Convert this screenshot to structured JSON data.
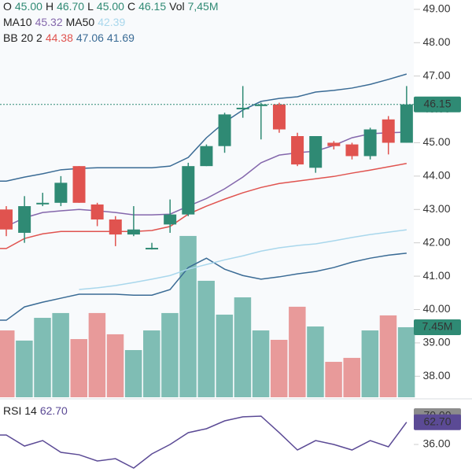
{
  "chart_data": {
    "type": "candlestick",
    "header": {
      "ohlc": [
        {
          "label": "O",
          "value": "45.00"
        },
        {
          "label": "H",
          "value": "46.70"
        },
        {
          "label": "L",
          "value": "45.00"
        },
        {
          "label": "C",
          "value": "46.15"
        },
        {
          "label": "Vol",
          "value": "7,45M"
        }
      ],
      "ma": [
        {
          "label": "MA10",
          "value": "45.32"
        },
        {
          "label": "MA50",
          "value": "42.39"
        }
      ],
      "bb": {
        "label": "BB 20 2",
        "values": [
          "44.38",
          "47.06",
          "41.69"
        ]
      },
      "rsi": {
        "label": "RSI 14",
        "value": "62.70"
      }
    },
    "open": [
      43.0,
      42.3,
      43.2,
      43.2,
      44.3,
      43.15,
      42.7,
      42.25,
      41.85,
      42.55,
      42.85,
      44.3,
      44.9,
      46.05,
      46.1,
      46.15,
      45.2,
      44.25,
      45.0,
      44.95,
      44.6,
      45.7,
      45.0
    ],
    "high": [
      43.1,
      43.4,
      43.5,
      44.0,
      44.3,
      43.2,
      42.8,
      43.1,
      42.0,
      43.3,
      44.4,
      44.95,
      45.9,
      46.7,
      46.2,
      46.2,
      45.3,
      45.2,
      45.05,
      45.0,
      45.45,
      45.8,
      46.7
    ],
    "low": [
      42.2,
      42.0,
      43.1,
      43.1,
      43.2,
      42.5,
      41.9,
      42.2,
      41.8,
      42.3,
      42.8,
      44.3,
      44.7,
      45.75,
      45.1,
      45.3,
      44.3,
      44.1,
      44.8,
      44.5,
      44.5,
      44.65,
      45.0
    ],
    "close": [
      42.4,
      43.1,
      43.2,
      43.8,
      43.2,
      42.7,
      42.25,
      42.4,
      41.85,
      42.85,
      44.3,
      44.9,
      45.85,
      46.05,
      46.15,
      45.4,
      44.35,
      45.2,
      44.9,
      44.6,
      45.4,
      45.0,
      46.15
    ],
    "up_color": "#2f8a74",
    "down_color": "#e0534f",
    "volume": [
      7.11,
      6.03,
      8.45,
      8.96,
      6.19,
      8.96,
      6.7,
      5.02,
      7.11,
      8.96,
      17.16,
      12.39,
      8.79,
      10.63,
      7.11,
      6.11,
      9.63,
      7.53,
      3.77,
      4.19,
      7.11,
      8.71,
      7.45
    ],
    "volume_up_color": "#7fbdb4",
    "volume_down_color": "#e89a9a",
    "volume_lim": [
      0,
      20
    ],
    "volume_label": "7.45M",
    "series": [
      {
        "name": "BB upper",
        "color": "#3a6b95",
        "values": [
          43.85,
          43.97,
          44.07,
          44.19,
          44.23,
          44.25,
          44.25,
          44.25,
          44.25,
          44.3,
          44.56,
          45.15,
          45.62,
          45.98,
          46.24,
          46.33,
          46.38,
          46.52,
          46.57,
          46.64,
          46.75,
          46.9,
          47.06
        ]
      },
      {
        "name": "BB lower",
        "color": "#3a6b95",
        "values": [
          39.68,
          40.08,
          40.22,
          40.34,
          40.46,
          40.46,
          40.46,
          40.43,
          40.43,
          40.6,
          41.26,
          41.54,
          41.21,
          41.02,
          40.91,
          40.98,
          41.07,
          41.14,
          41.26,
          41.42,
          41.54,
          41.63,
          41.69
        ]
      },
      {
        "name": "BB basis",
        "color": "#e0534f",
        "values": [
          41.83,
          42.13,
          42.27,
          42.34,
          42.34,
          42.34,
          42.34,
          42.34,
          42.37,
          42.49,
          42.86,
          43.1,
          43.31,
          43.5,
          43.66,
          43.78,
          43.85,
          43.92,
          43.99,
          44.09,
          44.18,
          44.28,
          44.38
        ]
      },
      {
        "name": "MA10",
        "color": "#8467ac",
        "values": [
          42.49,
          42.75,
          42.91,
          42.96,
          43.0,
          42.96,
          42.91,
          42.84,
          42.84,
          42.86,
          43.1,
          43.33,
          43.62,
          43.97,
          44.4,
          44.63,
          44.7,
          44.75,
          44.92,
          45.15,
          45.27,
          45.3,
          45.32
        ]
      },
      {
        "name": "MA50",
        "color": "#a9d7ec",
        "values": [
          null,
          null,
          null,
          null,
          40.6,
          40.65,
          40.72,
          40.81,
          40.91,
          41.02,
          41.21,
          41.35,
          41.49,
          41.61,
          41.75,
          41.85,
          41.92,
          41.97,
          42.06,
          42.16,
          42.25,
          42.32,
          42.39
        ]
      }
    ],
    "ylim": [
      37.37,
      49.28
    ],
    "yticks": [
      {
        "value": 49,
        "label": "49.00"
      },
      {
        "value": 48,
        "label": "48.00"
      },
      {
        "value": 47,
        "label": "47.00"
      },
      {
        "value": 46,
        "label": "46.00"
      },
      {
        "value": 45,
        "label": "45.00"
      },
      {
        "value": 44,
        "label": "44.00"
      },
      {
        "value": 43,
        "label": "43.00"
      },
      {
        "value": 42,
        "label": "42.00"
      },
      {
        "value": 41,
        "label": "41.00"
      },
      {
        "value": 40,
        "label": "40.00"
      },
      {
        "value": 39,
        "label": "39.00"
      },
      {
        "value": 38,
        "label": "38.00"
      }
    ],
    "last_price": {
      "value": 46.15,
      "label": "46.15"
    },
    "rsi": {
      "color": "#5b4a95",
      "values": [
        47.3,
        34.1,
        40.7,
        26.6,
        23.7,
        16.2,
        19.0,
        7.7,
        24.7,
        36.0,
        50.2,
        54.9,
        64.3,
        69.1,
        70.0,
        50.2,
        29.4,
        40.7,
        36.0,
        29.4,
        40.7,
        33.2,
        62.7
      ],
      "ylim": [
        3,
        86
      ],
      "yticks": [
        {
          "value": 70,
          "label": "70.00"
        },
        {
          "value": 36,
          "label": "36.00"
        }
      ],
      "last": {
        "value": 62.7,
        "label": "62.70"
      }
    }
  }
}
